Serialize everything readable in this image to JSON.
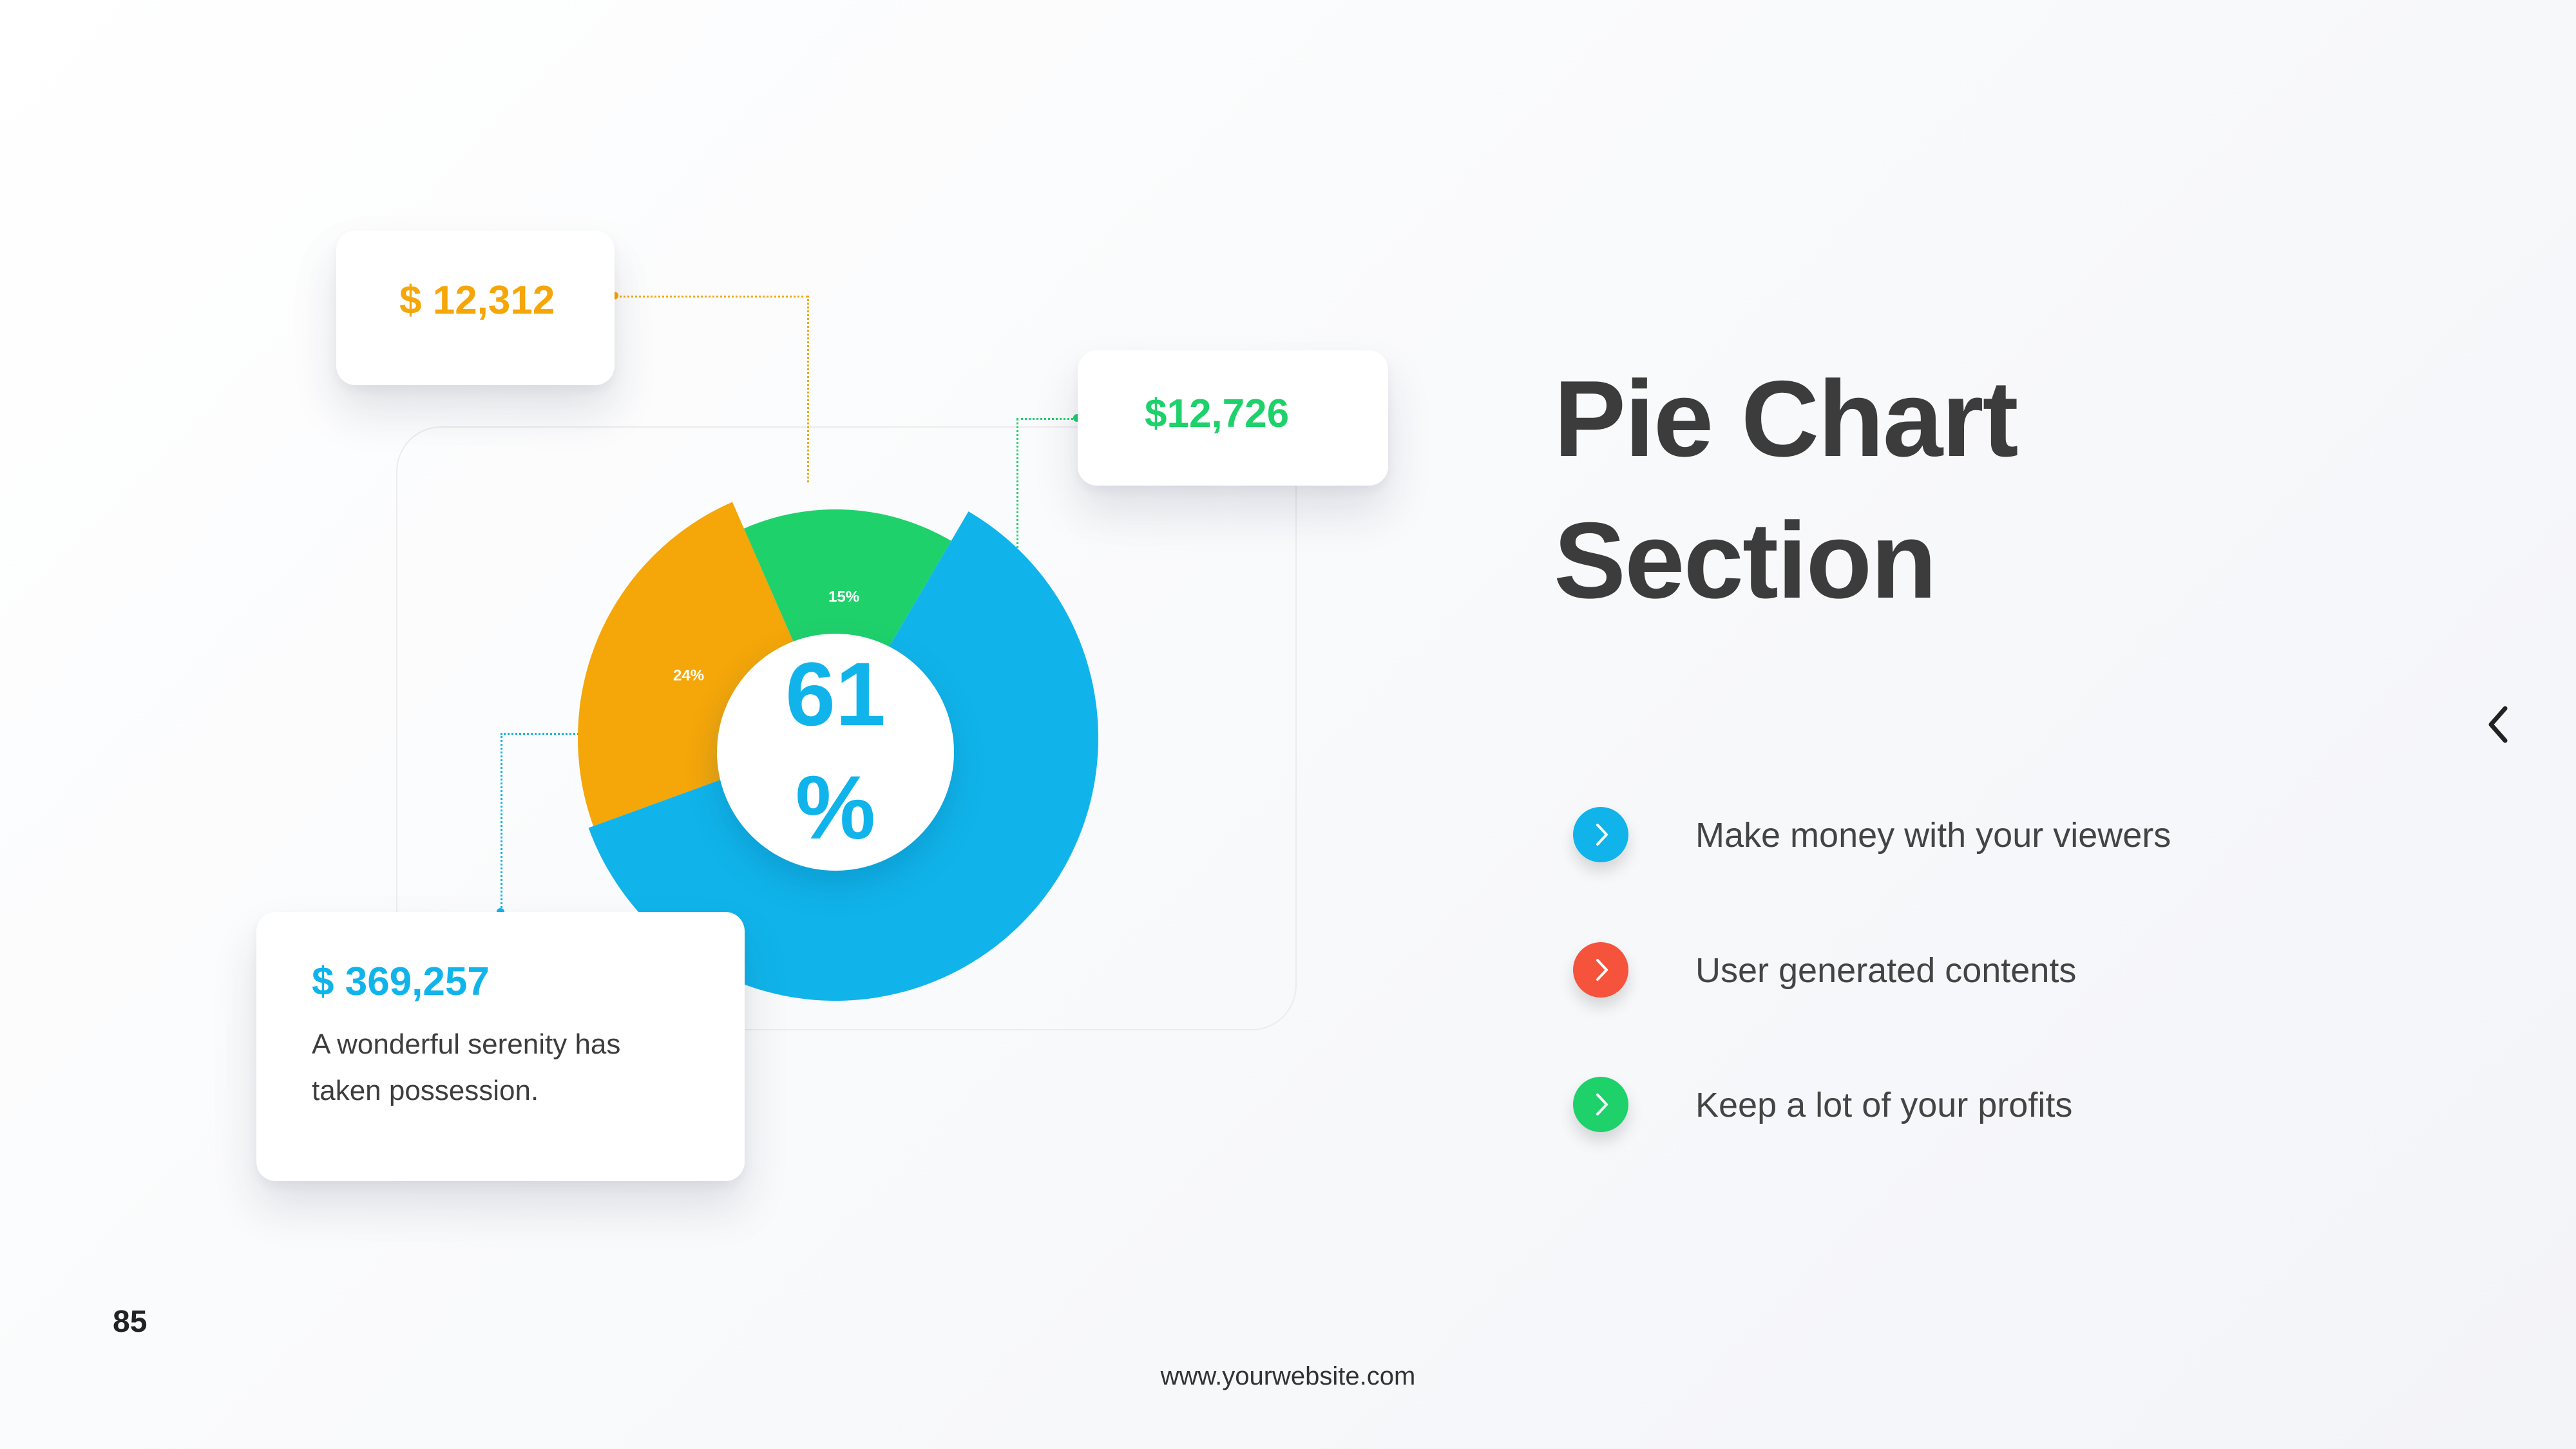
{
  "slide": {
    "title_line1": "Pie Chart",
    "title_line2": "Section",
    "page_number": "85",
    "website": "www.yourwebsite.com",
    "nav_icon": "chevron-left-icon"
  },
  "callouts": [
    {
      "value": "$ 12,312",
      "color": "#f5a608"
    },
    {
      "value": "$12,726",
      "color": "#1fd16b"
    },
    {
      "value": "$ 369,257",
      "color": "#10b4ea",
      "description_line1": "A wonderful serenity has",
      "description_line2": "taken possession."
    }
  ],
  "center_label": {
    "line1": "61",
    "line2": "%"
  },
  "bullets": [
    {
      "text": "Make money with your viewers",
      "color": "#10b4ea",
      "icon": "chevron-right-icon"
    },
    {
      "text": "User generated contents",
      "color": "#f5533b",
      "icon": "chevron-right-icon"
    },
    {
      "text": "Keep a lot of your profits",
      "color": "#1fd16b",
      "icon": "chevron-right-icon"
    }
  ],
  "chart_data": {
    "type": "pie",
    "donut": true,
    "slices": [
      {
        "value": 24,
        "label": "24%",
        "color": "#f5a608"
      },
      {
        "value": 15,
        "label": "15%",
        "color": "#1fd16b"
      },
      {
        "value": 61,
        "label": "",
        "color": "#10b4ea"
      }
    ],
    "center_text": "61 %"
  }
}
